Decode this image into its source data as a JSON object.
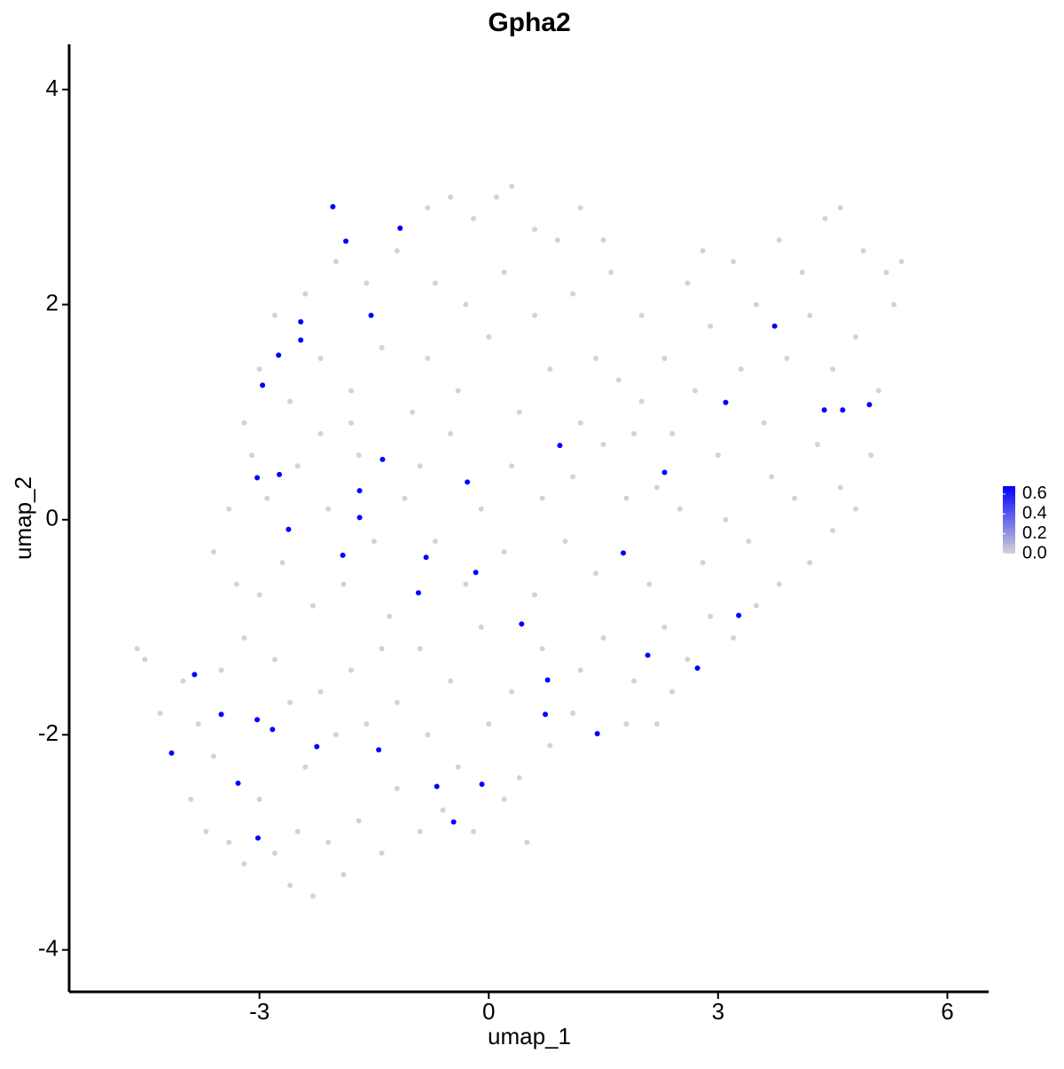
{
  "chart_data": {
    "type": "scatter",
    "title": "Gpha2",
    "x_label": "umap_1",
    "y_label": "umap_2",
    "xlim": [
      -5.49,
      6.54
    ],
    "xticks": [
      -3,
      0,
      3,
      6
    ],
    "ylim": [
      -4.39,
      4.42
    ],
    "yticks": [
      -4,
      -2,
      0,
      2,
      4
    ],
    "color_scale": {
      "low": "#d3d3d3",
      "high": "#0000ff",
      "lim": [
        0,
        0.68
      ],
      "ticks": [
        {
          "value": 0,
          "label": "0.0"
        },
        0.2,
        0.4,
        0.6
      ]
    },
    "points": [
      [
        -4.6,
        -1.2,
        0
      ],
      [
        -4.5,
        -1.3,
        0
      ],
      [
        -4.3,
        -1.8,
        0
      ],
      [
        -4.0,
        -1.5,
        0
      ],
      [
        -3.9,
        -2.6,
        0
      ],
      [
        -3.7,
        -2.9,
        0
      ],
      [
        -3.6,
        -2.2,
        0
      ],
      [
        -3.4,
        -3.0,
        0
      ],
      [
        -3.2,
        -3.2,
        0
      ],
      [
        -3.0,
        -2.6,
        0
      ],
      [
        -2.8,
        -3.1,
        0
      ],
      [
        -2.6,
        -3.4,
        0
      ],
      [
        -2.5,
        -2.9,
        0
      ],
      [
        -2.3,
        -3.5,
        0
      ],
      [
        -2.1,
        -3.0,
        0
      ],
      [
        -1.9,
        -3.3,
        0
      ],
      [
        -1.7,
        -2.8,
        0
      ],
      [
        -1.4,
        -3.1,
        0
      ],
      [
        -1.2,
        -2.5,
        0
      ],
      [
        -3.8,
        -1.9,
        0
      ],
      [
        -3.5,
        -1.4,
        0
      ],
      [
        -3.2,
        -1.1,
        0
      ],
      [
        -3.0,
        -0.7,
        0
      ],
      [
        -2.8,
        -1.3,
        0
      ],
      [
        -2.6,
        -1.7,
        0
      ],
      [
        -2.4,
        -2.3,
        0
      ],
      [
        -2.2,
        -1.6,
        0
      ],
      [
        -2.0,
        -2.0,
        0
      ],
      [
        -1.8,
        -1.4,
        0
      ],
      [
        -1.6,
        -1.9,
        0
      ],
      [
        -1.4,
        -1.2,
        0
      ],
      [
        -1.2,
        -1.7,
        0
      ],
      [
        -3.6,
        -0.3,
        0
      ],
      [
        -3.4,
        0.1,
        0
      ],
      [
        -3.3,
        -0.6,
        0
      ],
      [
        -3.1,
        0.6,
        0
      ],
      [
        -2.9,
        0.2,
        0
      ],
      [
        -2.7,
        -0.4,
        0
      ],
      [
        -2.5,
        0.5,
        0
      ],
      [
        -2.3,
        -0.8,
        0
      ],
      [
        -2.1,
        0.1,
        0
      ],
      [
        -1.9,
        -0.6,
        0
      ],
      [
        -1.7,
        0.6,
        0
      ],
      [
        -1.5,
        -0.2,
        0
      ],
      [
        -1.3,
        -0.9,
        0
      ],
      [
        -1.1,
        0.2,
        0
      ],
      [
        -3.2,
        0.9,
        0
      ],
      [
        -3.0,
        1.4,
        0
      ],
      [
        -2.8,
        1.9,
        0
      ],
      [
        -2.6,
        1.1,
        0
      ],
      [
        -2.4,
        2.1,
        0
      ],
      [
        -2.2,
        1.5,
        0
      ],
      [
        -2.0,
        2.4,
        0
      ],
      [
        -1.8,
        1.2,
        0
      ],
      [
        -1.6,
        2.2,
        0
      ],
      [
        -1.4,
        1.6,
        0
      ],
      [
        -1.2,
        2.5,
        0
      ],
      [
        -1.0,
        1.0,
        0
      ],
      [
        -2.2,
        0.8,
        0
      ],
      [
        -1.8,
        0.9,
        0
      ],
      [
        -0.8,
        2.9,
        0
      ],
      [
        -0.5,
        3.0,
        0
      ],
      [
        -0.2,
        2.8,
        0
      ],
      [
        0.1,
        3.0,
        0
      ],
      [
        0.3,
        3.1,
        0
      ],
      [
        0.6,
        2.7,
        0
      ],
      [
        0.9,
        2.6,
        0
      ],
      [
        1.2,
        2.9,
        0
      ],
      [
        1.5,
        2.6,
        0
      ],
      [
        -0.7,
        2.2,
        0
      ],
      [
        -0.3,
        2.0,
        0
      ],
      [
        0.2,
        2.3,
        0
      ],
      [
        0.6,
        1.9,
        0
      ],
      [
        1.1,
        2.1,
        0
      ],
      [
        1.4,
        1.5,
        0
      ],
      [
        -0.8,
        1.5,
        0
      ],
      [
        -0.4,
        1.2,
        0
      ],
      [
        0.0,
        1.7,
        0
      ],
      [
        0.4,
        1.0,
        0
      ],
      [
        0.8,
        1.4,
        0
      ],
      [
        1.2,
        0.9,
        0
      ],
      [
        -0.9,
        0.5,
        0
      ],
      [
        -0.5,
        0.8,
        0
      ],
      [
        -0.1,
        0.1,
        0
      ],
      [
        0.3,
        0.5,
        0
      ],
      [
        0.7,
        0.2,
        0
      ],
      [
        1.1,
        0.4,
        0
      ],
      [
        1.5,
        0.7,
        0
      ],
      [
        -0.7,
        -0.2,
        0
      ],
      [
        -0.3,
        -0.6,
        0
      ],
      [
        0.2,
        -0.3,
        0
      ],
      [
        0.6,
        -0.7,
        0
      ],
      [
        1.0,
        -0.2,
        0
      ],
      [
        1.4,
        -0.5,
        0
      ],
      [
        1.8,
        0.2,
        0
      ],
      [
        2.1,
        -0.6,
        0
      ],
      [
        -0.9,
        -1.2,
        0
      ],
      [
        -0.5,
        -1.5,
        0
      ],
      [
        -0.1,
        -1.0,
        0
      ],
      [
        0.3,
        -1.6,
        0
      ],
      [
        0.7,
        -1.2,
        0
      ],
      [
        1.1,
        -1.8,
        0
      ],
      [
        1.5,
        -1.1,
        0
      ],
      [
        1.9,
        -1.5,
        0
      ],
      [
        2.3,
        -1.0,
        0
      ],
      [
        -0.8,
        -2.0,
        0
      ],
      [
        -0.4,
        -2.3,
        0
      ],
      [
        0.0,
        -1.9,
        0
      ],
      [
        0.4,
        -2.4,
        0
      ],
      [
        0.8,
        -2.1,
        0
      ],
      [
        1.2,
        -1.4,
        0
      ],
      [
        -0.6,
        -2.7,
        0
      ],
      [
        -0.2,
        -2.9,
        0
      ],
      [
        0.2,
        -2.6,
        0
      ],
      [
        0.5,
        -3.0,
        0
      ],
      [
        -0.9,
        -2.9,
        0
      ],
      [
        1.7,
        1.3,
        0
      ],
      [
        2.0,
        1.9,
        0
      ],
      [
        2.3,
        1.5,
        0
      ],
      [
        2.6,
        2.2,
        0
      ],
      [
        2.9,
        1.8,
        0
      ],
      [
        3.2,
        2.4,
        0
      ],
      [
        3.5,
        2.0,
        0
      ],
      [
        3.8,
        2.6,
        0
      ],
      [
        4.1,
        2.3,
        0
      ],
      [
        4.4,
        2.8,
        0
      ],
      [
        4.6,
        2.9,
        0
      ],
      [
        4.9,
        2.5,
        0
      ],
      [
        5.2,
        2.3,
        0
      ],
      [
        5.3,
        2.0,
        0
      ],
      [
        2.0,
        1.1,
        0
      ],
      [
        2.4,
        0.8,
        0
      ],
      [
        2.7,
        1.2,
        0
      ],
      [
        3.0,
        0.6,
        0
      ],
      [
        3.3,
        1.4,
        0
      ],
      [
        3.6,
        0.9,
        0
      ],
      [
        3.9,
        1.5,
        0
      ],
      [
        4.2,
        1.9,
        0
      ],
      [
        4.5,
        1.4,
        0
      ],
      [
        4.8,
        1.7,
        0
      ],
      [
        5.1,
        1.2,
        0
      ],
      [
        5.0,
        0.6,
        0
      ],
      [
        4.6,
        0.3,
        0
      ],
      [
        4.3,
        0.7,
        0
      ],
      [
        4.0,
        0.2,
        0
      ],
      [
        3.7,
        0.4,
        0
      ],
      [
        3.4,
        -0.2,
        0
      ],
      [
        3.1,
        0.0,
        0
      ],
      [
        2.8,
        -0.4,
        0
      ],
      [
        2.5,
        0.1,
        0
      ],
      [
        2.2,
        0.3,
        0
      ],
      [
        1.9,
        0.8,
        0
      ],
      [
        4.8,
        0.1,
        0
      ],
      [
        4.5,
        -0.1,
        0
      ],
      [
        4.2,
        -0.4,
        0
      ],
      [
        3.8,
        -0.6,
        0
      ],
      [
        3.5,
        -0.8,
        0
      ],
      [
        3.2,
        -1.1,
        0
      ],
      [
        2.9,
        -0.9,
        0
      ],
      [
        2.6,
        -1.3,
        0
      ],
      [
        2.4,
        -1.6,
        0
      ],
      [
        1.8,
        -1.9,
        0
      ],
      [
        2.2,
        -1.9,
        0
      ],
      [
        1.6,
        2.3,
        0
      ],
      [
        2.8,
        2.5,
        0
      ],
      [
        5.4,
        2.4,
        0
      ],
      [
        -2.04,
        2.91,
        0.68
      ],
      [
        -1.87,
        2.59,
        0.68
      ],
      [
        -1.16,
        2.71,
        0.68
      ],
      [
        -1.54,
        1.9,
        0.68
      ],
      [
        -2.46,
        1.84,
        0.68
      ],
      [
        -2.46,
        1.67,
        0.68
      ],
      [
        -2.75,
        1.53,
        0.68
      ],
      [
        -2.96,
        1.25,
        0.68
      ],
      [
        3.74,
        1.8,
        0.68
      ],
      [
        3.1,
        1.09,
        0.68
      ],
      [
        4.39,
        1.02,
        0.68
      ],
      [
        4.63,
        1.02,
        0.68
      ],
      [
        4.98,
        1.07,
        0.68
      ],
      [
        0.93,
        0.69,
        0.68
      ],
      [
        -1.39,
        0.56,
        0.68
      ],
      [
        -3.03,
        0.39,
        0.68
      ],
      [
        -2.74,
        0.42,
        0.68
      ],
      [
        -0.28,
        0.35,
        0.68
      ],
      [
        2.3,
        0.44,
        0.68
      ],
      [
        -1.69,
        0.27,
        0.68
      ],
      [
        -1.69,
        0.02,
        0.68
      ],
      [
        -2.62,
        -0.09,
        0.68
      ],
      [
        -1.91,
        -0.33,
        0.68
      ],
      [
        -0.82,
        -0.35,
        0.68
      ],
      [
        -0.17,
        -0.49,
        0.68
      ],
      [
        1.76,
        -0.31,
        0.68
      ],
      [
        -0.92,
        -0.68,
        0.68
      ],
      [
        3.27,
        -0.89,
        0.68
      ],
      [
        0.43,
        -0.97,
        0.68
      ],
      [
        2.08,
        -1.26,
        0.68
      ],
      [
        2.73,
        -1.38,
        0.68
      ],
      [
        -3.85,
        -1.44,
        0.68
      ],
      [
        0.77,
        -1.49,
        0.68
      ],
      [
        -3.5,
        -1.81,
        0.68
      ],
      [
        -3.03,
        -1.86,
        0.68
      ],
      [
        -2.83,
        -1.95,
        0.68
      ],
      [
        0.74,
        -1.81,
        0.68
      ],
      [
        1.42,
        -1.99,
        0.68
      ],
      [
        -2.25,
        -2.11,
        0.68
      ],
      [
        -1.44,
        -2.14,
        0.68
      ],
      [
        -4.15,
        -2.17,
        0.68
      ],
      [
        -3.28,
        -2.45,
        0.68
      ],
      [
        -0.68,
        -2.48,
        0.68
      ],
      [
        -0.09,
        -2.46,
        0.68
      ],
      [
        -0.46,
        -2.81,
        0.68
      ],
      [
        -3.02,
        -2.96,
        0.68
      ]
    ]
  }
}
